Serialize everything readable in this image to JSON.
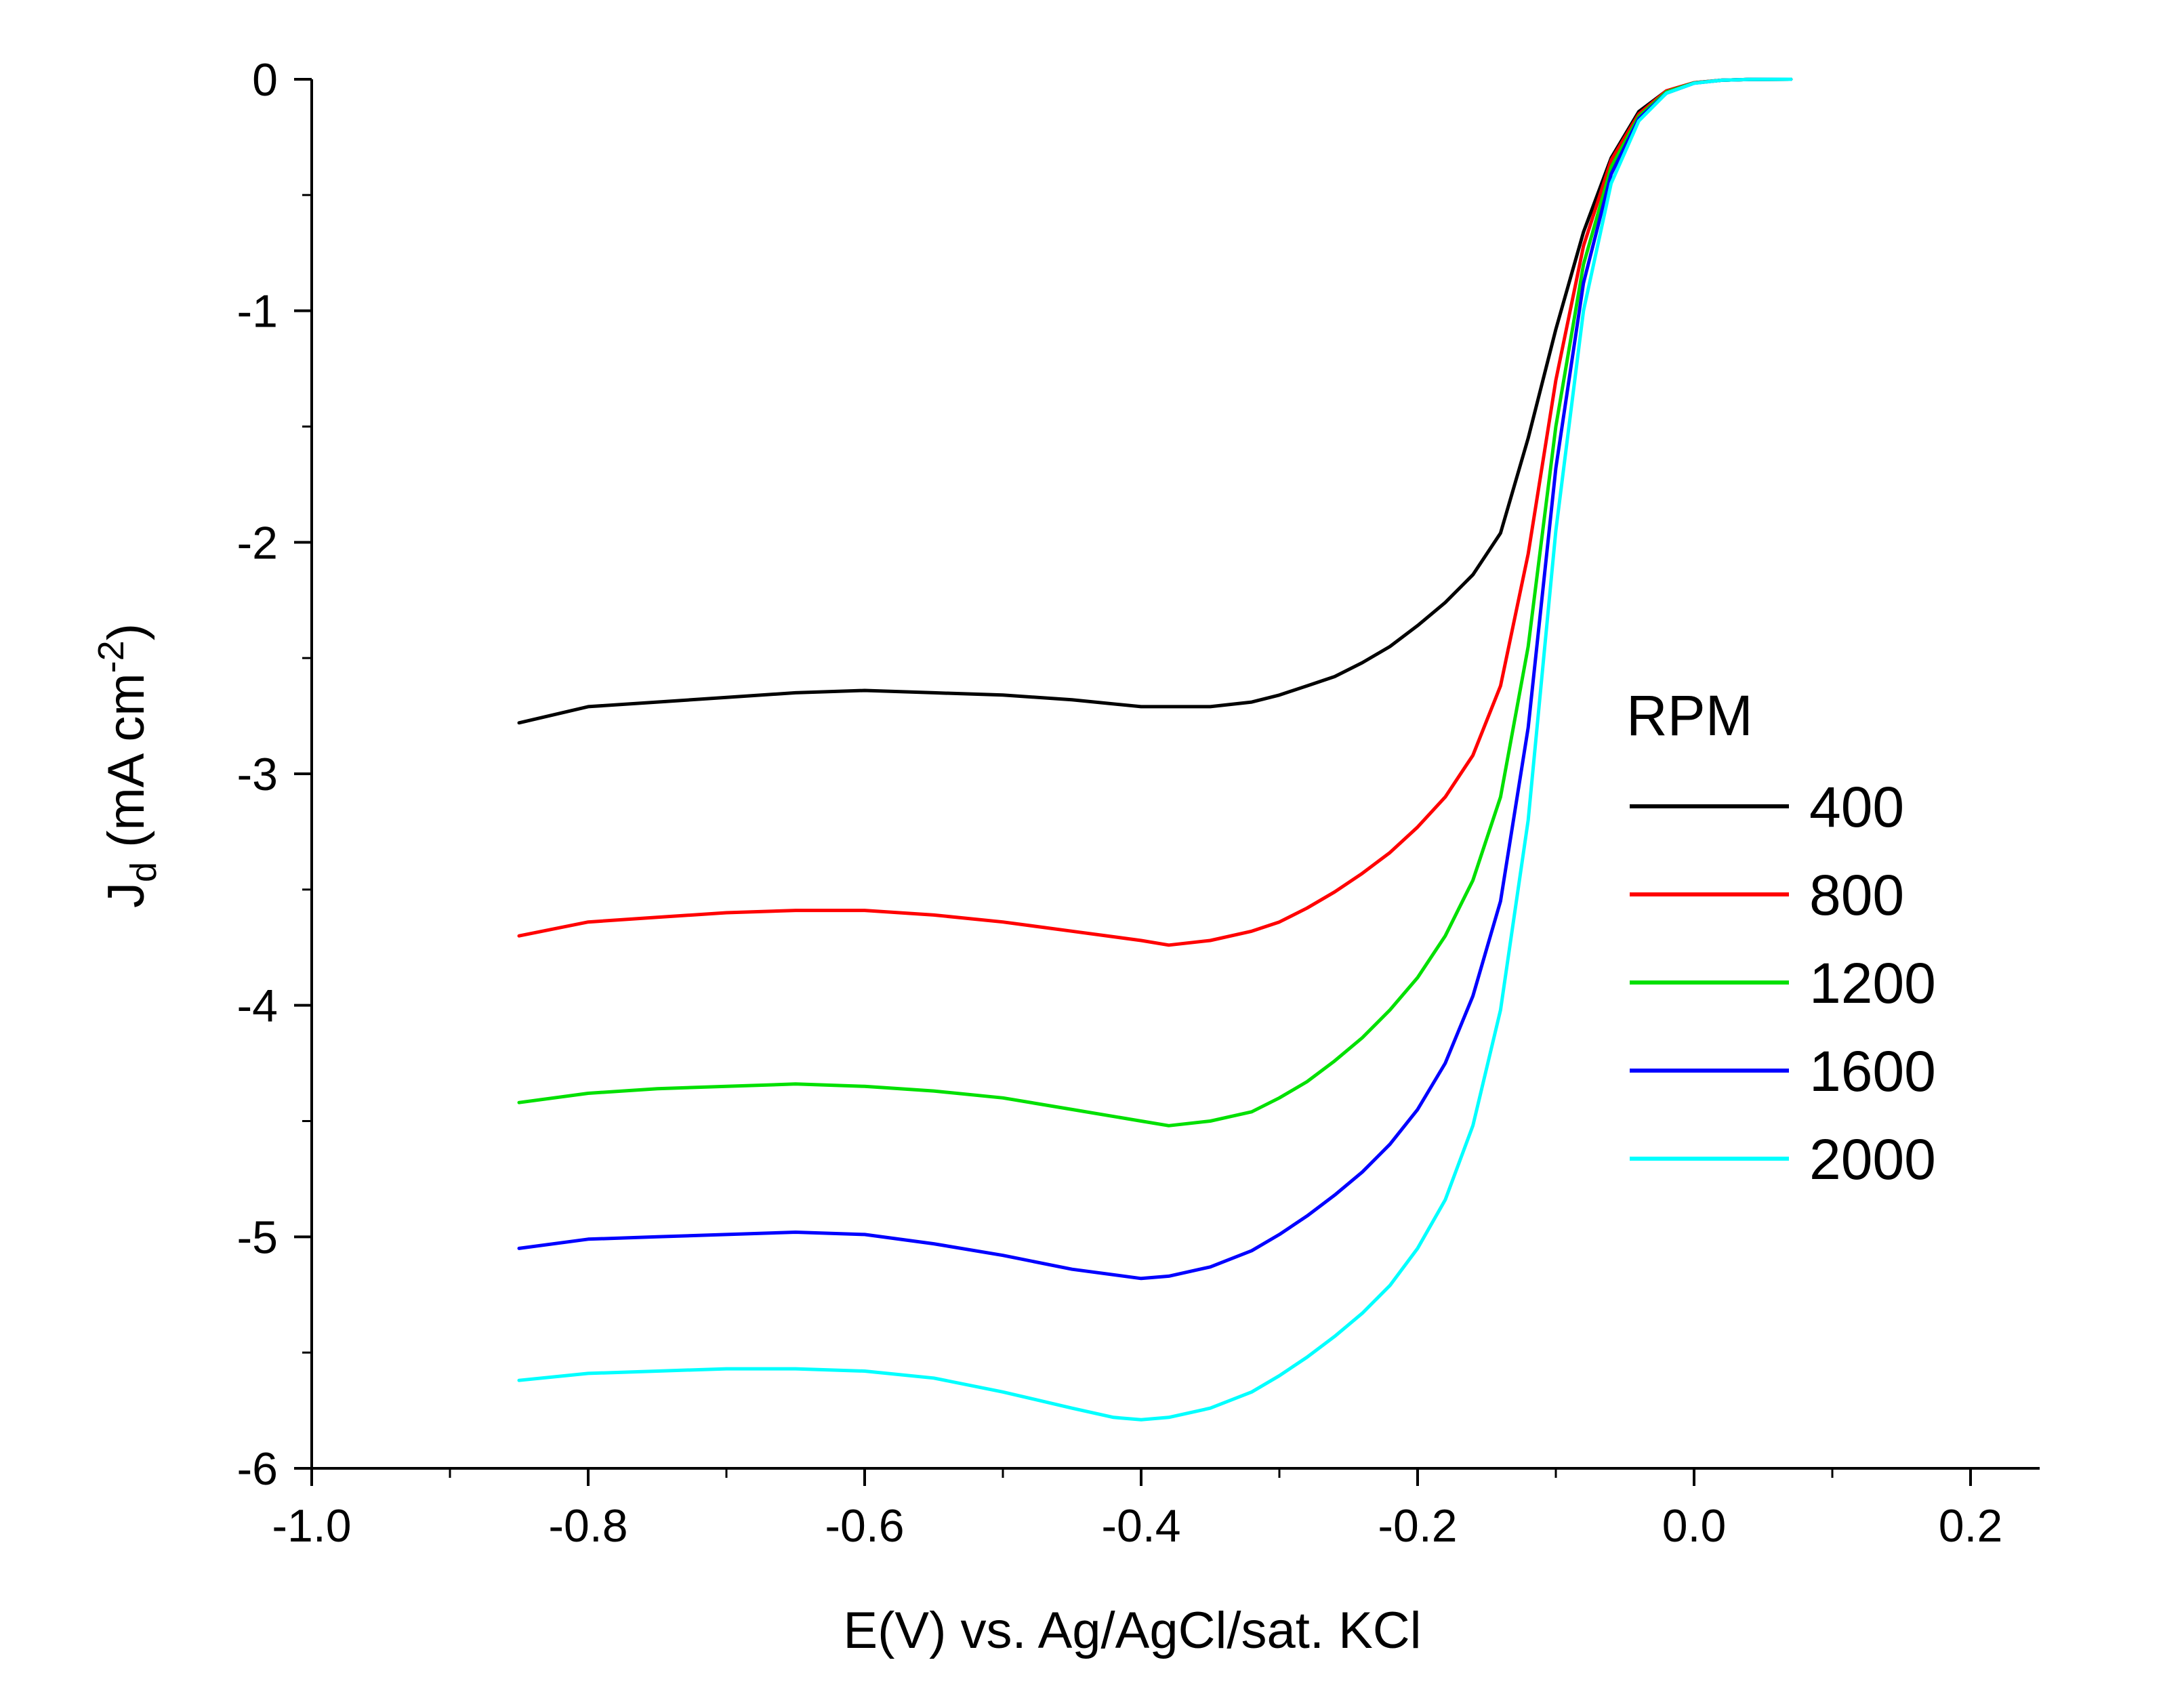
{
  "chart_data": {
    "type": "line",
    "title": "",
    "xlabel": "E(V) vs. Ag/AgCl/sat. KCl",
    "ylabel": {
      "main": "J",
      "sub": "d",
      "unit_pre": " (mA cm",
      "sup": "-2",
      "unit_post": ")"
    },
    "xlim": [
      -1.0,
      0.25
    ],
    "ylim": [
      -6,
      0
    ],
    "x_ticks": [
      -1.0,
      -0.8,
      -0.6,
      -0.4,
      -0.2,
      0.0,
      0.2
    ],
    "x_tick_labels": [
      "-1.0",
      "-0.8",
      "-0.6",
      "-0.4",
      "-0.2",
      "0.0",
      "0.2"
    ],
    "y_ticks": [
      0,
      -1,
      -2,
      -3,
      -4,
      -5,
      -6
    ],
    "y_tick_labels": [
      "0",
      "-1",
      "-2",
      "-3",
      "-4",
      "-5",
      "-6"
    ],
    "grid": false,
    "legend": {
      "title": "RPM",
      "position": "right"
    },
    "series": [
      {
        "name": "400",
        "color": "#000000",
        "x": [
          -0.85,
          -0.8,
          -0.75,
          -0.7,
          -0.65,
          -0.6,
          -0.55,
          -0.5,
          -0.45,
          -0.4,
          -0.35,
          -0.32,
          -0.3,
          -0.28,
          -0.26,
          -0.24,
          -0.22,
          -0.2,
          -0.18,
          -0.16,
          -0.14,
          -0.12,
          -0.1,
          -0.08,
          -0.06,
          -0.04,
          -0.02,
          0.0,
          0.02,
          0.04,
          0.07
        ],
        "y": [
          -2.78,
          -2.71,
          -2.69,
          -2.67,
          -2.65,
          -2.64,
          -2.65,
          -2.66,
          -2.68,
          -2.71,
          -2.71,
          -2.69,
          -2.66,
          -2.62,
          -2.58,
          -2.52,
          -2.45,
          -2.36,
          -2.26,
          -2.14,
          -1.96,
          -1.55,
          -1.08,
          -0.66,
          -0.34,
          -0.14,
          -0.05,
          -0.015,
          -0.004,
          -0.001,
          0.0
        ]
      },
      {
        "name": "800",
        "color": "#ff0000",
        "x": [
          -0.85,
          -0.8,
          -0.75,
          -0.7,
          -0.65,
          -0.6,
          -0.55,
          -0.5,
          -0.45,
          -0.4,
          -0.38,
          -0.35,
          -0.32,
          -0.3,
          -0.28,
          -0.26,
          -0.24,
          -0.22,
          -0.2,
          -0.18,
          -0.16,
          -0.14,
          -0.12,
          -0.1,
          -0.08,
          -0.06,
          -0.04,
          -0.02,
          0.0,
          0.02,
          0.04,
          0.07
        ],
        "y": [
          -3.7,
          -3.64,
          -3.62,
          -3.6,
          -3.59,
          -3.59,
          -3.61,
          -3.64,
          -3.68,
          -3.72,
          -3.74,
          -3.72,
          -3.68,
          -3.64,
          -3.58,
          -3.51,
          -3.43,
          -3.34,
          -3.23,
          -3.1,
          -2.92,
          -2.62,
          -2.05,
          -1.3,
          -0.72,
          -0.35,
          -0.15,
          -0.05,
          -0.015,
          -0.004,
          -0.001,
          0.0
        ]
      },
      {
        "name": "1200",
        "color": "#00e000",
        "x": [
          -0.85,
          -0.8,
          -0.75,
          -0.7,
          -0.65,
          -0.6,
          -0.55,
          -0.5,
          -0.45,
          -0.4,
          -0.38,
          -0.35,
          -0.32,
          -0.3,
          -0.28,
          -0.26,
          -0.24,
          -0.22,
          -0.2,
          -0.18,
          -0.16,
          -0.14,
          -0.12,
          -0.1,
          -0.08,
          -0.06,
          -0.04,
          -0.02,
          0.0,
          0.02,
          0.04,
          0.07
        ],
        "y": [
          -4.42,
          -4.38,
          -4.36,
          -4.35,
          -4.34,
          -4.35,
          -4.37,
          -4.4,
          -4.45,
          -4.5,
          -4.52,
          -4.5,
          -4.46,
          -4.4,
          -4.33,
          -4.24,
          -4.14,
          -4.02,
          -3.88,
          -3.7,
          -3.46,
          -3.1,
          -2.45,
          -1.5,
          -0.8,
          -0.38,
          -0.16,
          -0.055,
          -0.016,
          -0.004,
          -0.001,
          0.0
        ]
      },
      {
        "name": "1600",
        "color": "#0000ff",
        "x": [
          -0.85,
          -0.8,
          -0.75,
          -0.7,
          -0.65,
          -0.6,
          -0.55,
          -0.5,
          -0.45,
          -0.4,
          -0.38,
          -0.35,
          -0.32,
          -0.3,
          -0.28,
          -0.26,
          -0.24,
          -0.22,
          -0.2,
          -0.18,
          -0.16,
          -0.14,
          -0.12,
          -0.1,
          -0.08,
          -0.06,
          -0.04,
          -0.02,
          0.0,
          0.02,
          0.04,
          0.07
        ],
        "y": [
          -5.05,
          -5.01,
          -5.0,
          -4.99,
          -4.98,
          -4.99,
          -5.03,
          -5.08,
          -5.14,
          -5.18,
          -5.17,
          -5.13,
          -5.06,
          -4.99,
          -4.91,
          -4.82,
          -4.72,
          -4.6,
          -4.45,
          -4.25,
          -3.96,
          -3.55,
          -2.8,
          -1.68,
          -0.88,
          -0.41,
          -0.17,
          -0.06,
          -0.017,
          -0.004,
          -0.001,
          0.0
        ]
      },
      {
        "name": "2000",
        "color": "#00ffff",
        "x": [
          -0.85,
          -0.8,
          -0.75,
          -0.7,
          -0.65,
          -0.6,
          -0.55,
          -0.5,
          -0.45,
          -0.42,
          -0.4,
          -0.38,
          -0.35,
          -0.32,
          -0.3,
          -0.28,
          -0.26,
          -0.24,
          -0.22,
          -0.2,
          -0.18,
          -0.16,
          -0.14,
          -0.12,
          -0.1,
          -0.08,
          -0.06,
          -0.04,
          -0.02,
          0.0,
          0.02,
          0.04,
          0.07
        ],
        "y": [
          -5.62,
          -5.59,
          -5.58,
          -5.57,
          -5.57,
          -5.58,
          -5.61,
          -5.67,
          -5.74,
          -5.78,
          -5.79,
          -5.78,
          -5.74,
          -5.67,
          -5.6,
          -5.52,
          -5.43,
          -5.33,
          -5.21,
          -5.05,
          -4.84,
          -4.52,
          -4.02,
          -3.2,
          -1.95,
          -1.0,
          -0.45,
          -0.18,
          -0.06,
          -0.017,
          -0.004,
          -0.001,
          0.0
        ]
      }
    ]
  }
}
